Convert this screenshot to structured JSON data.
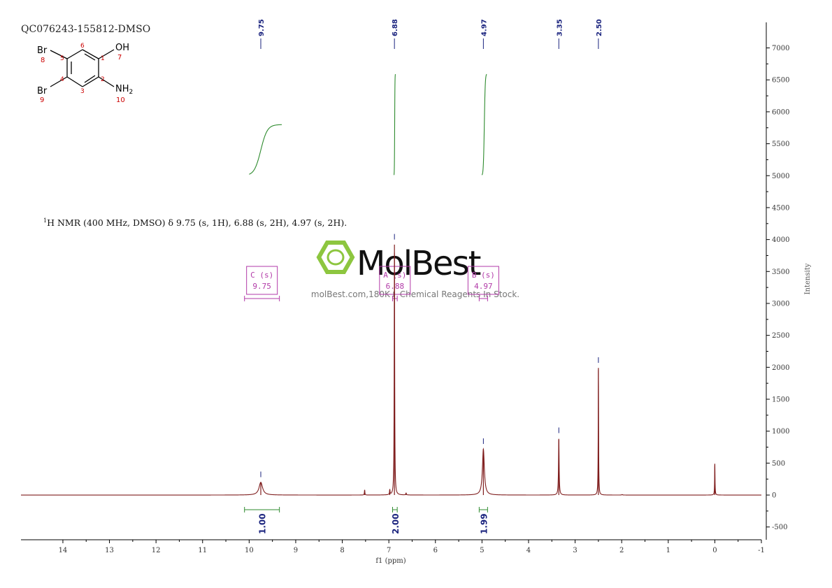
{
  "sample_id": "QC076243-155812-DMSO",
  "nmr_text": {
    "superscript": "1",
    "body": "H NMR (400 MHz, DMSO) δ 9.75 (s, 1H), 6.88 (s, 2H), 4.97 (s, 2H)."
  },
  "watermark": {
    "brand": "MolBest",
    "tagline": "molBest.com,180K+ Chemical Reagents In Stock."
  },
  "molecule": {
    "atoms": [
      {
        "symbol": "Br",
        "number": "8"
      },
      {
        "symbol": "Br",
        "number": "9"
      },
      {
        "symbol": "OH",
        "number": "7"
      },
      {
        "symbol": "NH2",
        "number": "10"
      }
    ],
    "ring_numbers": [
      "1",
      "2",
      "3",
      "4",
      "5",
      "6"
    ]
  },
  "chart_data": {
    "type": "line",
    "xlabel": "f1 (ppm)",
    "ylabel": "Intensity",
    "xlim": [
      14.9,
      -1.0
    ],
    "ylim": [
      -700,
      7400
    ],
    "x_reversed": true,
    "x_ticks": [
      14,
      13,
      12,
      11,
      10,
      9,
      8,
      7,
      6,
      5,
      4,
      3,
      2,
      1,
      0,
      -1
    ],
    "x_tick_labels": [
      "14",
      "13",
      "12",
      "11",
      "10",
      "9",
      "8",
      "7",
      "6",
      "5",
      "4",
      "3",
      "2",
      "1",
      "0",
      "-1"
    ],
    "y_ticks": [
      -500,
      0,
      500,
      1000,
      1500,
      2000,
      2500,
      3000,
      3500,
      4000,
      4500,
      5000,
      5500,
      6000,
      6500,
      7000
    ],
    "y_tick_labels": [
      "-500",
      "0",
      "500",
      "1000",
      "1500",
      "2000",
      "2500",
      "3000",
      "3500",
      "4000",
      "4500",
      "5000",
      "5500",
      "6000",
      "6500",
      "7000"
    ],
    "peaks": [
      {
        "ppm": 9.75,
        "height": 200,
        "width": 0.045
      },
      {
        "ppm": 7.52,
        "height": 80,
        "width": 0.006
      },
      {
        "ppm": 6.98,
        "height": 80,
        "width": 0.006
      },
      {
        "ppm": 6.88,
        "height": 3920,
        "width": 0.006
      },
      {
        "ppm": 6.63,
        "height": 30,
        "width": 0.008
      },
      {
        "ppm": 4.97,
        "height": 720,
        "width": 0.025
      },
      {
        "ppm": 3.35,
        "height": 880,
        "width": 0.008
      },
      {
        "ppm": 2.5,
        "height": 1990,
        "width": 0.005
      },
      {
        "ppm": 1.99,
        "height": 8,
        "width": 0.01
      },
      {
        "ppm": 0.0,
        "height": 490,
        "width": 0.005
      }
    ],
    "peak_labels": [
      "9.75",
      "6.88",
      "4.97",
      "3.35",
      "2.50"
    ],
    "peak_label_ppm": [
      9.75,
      6.88,
      4.97,
      3.35,
      2.5
    ],
    "peak_top_markers": [
      {
        "ppm": 9.75,
        "intensity": 280
      },
      {
        "ppm": 6.88,
        "intensity": 4000
      },
      {
        "ppm": 4.97,
        "intensity": 800
      },
      {
        "ppm": 3.35,
        "intensity": 970
      },
      {
        "ppm": 2.5,
        "intensity": 2070
      }
    ],
    "integral_curves": [
      {
        "from_ppm": 10.0,
        "to_ppm": 9.3,
        "center": 9.75,
        "start": 5000,
        "end": 5800
      },
      {
        "from_ppm": 6.89,
        "to_ppm": 6.86,
        "center": 6.875,
        "start": 5000,
        "end": 6600
      },
      {
        "from_ppm": 5.0,
        "to_ppm": 4.9,
        "center": 4.95,
        "start": 5000,
        "end": 6600
      }
    ],
    "integrals": [
      {
        "from": 10.1,
        "to": 9.35,
        "value": "1.00"
      },
      {
        "from": 6.92,
        "to": 6.82,
        "value": "2.00"
      },
      {
        "from": 5.06,
        "to": 4.88,
        "value": "1.99"
      }
    ],
    "multiplets": [
      {
        "label": "C (s)",
        "shift": "9.75",
        "from": 10.1,
        "to": 9.35
      },
      {
        "label": "A (s)",
        "shift": "6.88",
        "from": 6.92,
        "to": 6.82
      },
      {
        "label": "B (s)",
        "shift": "4.97",
        "from": 5.06,
        "to": 4.88
      }
    ],
    "colors": {
      "spectrum": "#7f1d1d",
      "integral": "#2e8b2e",
      "peak_label": "#1a237e",
      "multiplet": "#b23aa8",
      "watermark": "#8dc63f"
    }
  }
}
